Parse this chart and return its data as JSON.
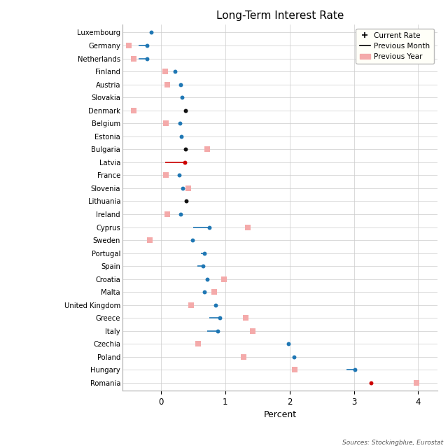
{
  "title": "Long-Term Interest Rate",
  "xlabel": "Percent",
  "source_text": "Sources: Stockingblue, Eurostat",
  "xlim": [
    -0.6,
    4.3
  ],
  "countries": [
    "Luxembourg",
    "Germany",
    "Netherlands",
    "Finland",
    "Austria",
    "Slovakia",
    "Denmark",
    "Belgium",
    "Estonia",
    "Bulgaria",
    "Latvia",
    "France",
    "Slovenia",
    "Lithuania",
    "Ireland",
    "Cyprus",
    "Sweden",
    "Portugal",
    "Spain",
    "Croatia",
    "Malta",
    "United Kingdom",
    "Greece",
    "Italy",
    "Czechia",
    "Poland",
    "Hungary",
    "Romania"
  ],
  "current_rate": [
    -0.15,
    -0.22,
    -0.22,
    0.22,
    0.3,
    0.33,
    0.38,
    0.29,
    0.32,
    0.38,
    0.37,
    0.28,
    0.34,
    0.39,
    0.3,
    0.75,
    0.49,
    0.68,
    0.65,
    0.72,
    0.68,
    0.85,
    0.92,
    0.88,
    1.98,
    2.07,
    3.02,
    3.27
  ],
  "prev_month_start": [
    null,
    -0.35,
    -0.35,
    null,
    null,
    null,
    null,
    null,
    null,
    null,
    0.07,
    null,
    null,
    null,
    null,
    0.5,
    null,
    0.62,
    0.57,
    null,
    null,
    null,
    0.75,
    0.72,
    null,
    null,
    2.88,
    null
  ],
  "prev_year": [
    null,
    -0.5,
    -0.42,
    0.07,
    0.1,
    null,
    -0.42,
    0.08,
    null,
    0.72,
    null,
    0.08,
    0.43,
    null,
    0.1,
    1.35,
    -0.17,
    null,
    null,
    0.98,
    0.83,
    0.47,
    1.32,
    1.43,
    0.58,
    1.28,
    2.08,
    3.97
  ],
  "dot_colors": [
    "#1f77b4",
    "#1f77b4",
    "#1f77b4",
    "#1f77b4",
    "#1f77b4",
    "#1f77b4",
    "#111111",
    "#1f77b4",
    "#1f77b4",
    "#111111",
    "#cc0000",
    "#1f77b4",
    "#1f77b4",
    "#111111",
    "#1f77b4",
    "#1f77b4",
    "#1f77b4",
    "#1f77b4",
    "#1f77b4",
    "#1f77b4",
    "#1f77b4",
    "#1f77b4",
    "#1f77b4",
    "#1f77b4",
    "#1f77b4",
    "#1f77b4",
    "#1f77b4",
    "#cc0000"
  ],
  "line_color_flags": [
    false,
    true,
    true,
    true,
    true,
    false,
    false,
    true,
    true,
    false,
    true,
    true,
    true,
    false,
    true,
    true,
    true,
    true,
    true,
    false,
    false,
    true,
    true,
    true,
    false,
    false,
    true,
    false
  ],
  "prev_year_color": "#f4aaaa",
  "prev_year_square_color": "#f4aaaa",
  "line_color": "#1f77b4",
  "latvia_line_color": "#cc0000",
  "background_color": "#ffffff",
  "grid_color": "#cccccc",
  "legend_bg": "#fffff8"
}
